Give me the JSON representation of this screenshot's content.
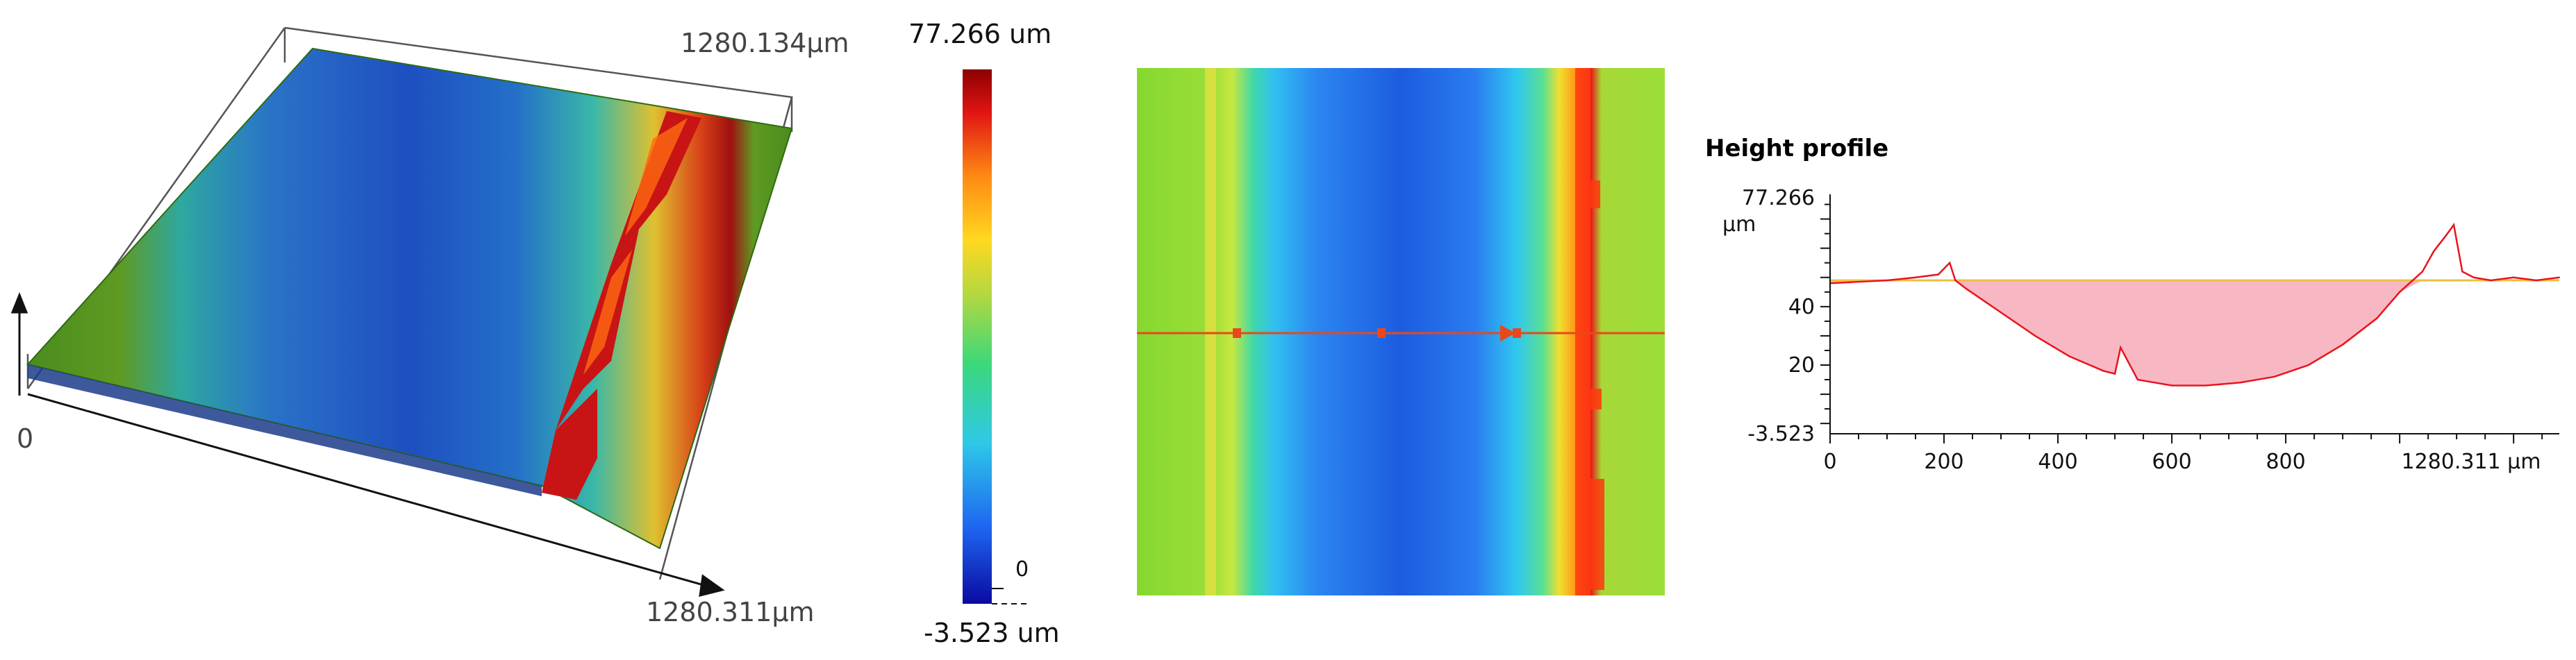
{
  "surface3d": {
    "y_extent_label": "1280.134µm",
    "x_extent_label": "1280.311µm",
    "origin_label": "0"
  },
  "colorbar": {
    "max_label": "77.266 um",
    "min_label": "-3.523 um",
    "zero_label": "0",
    "colors": [
      "#0a0aa0",
      "#1e64f0",
      "#2ec8e8",
      "#3cd87a",
      "#b4d840",
      "#ffd820",
      "#ff8a14",
      "#e01414",
      "#8c0000"
    ]
  },
  "heatmap": {
    "marker_color": "#e8481c"
  },
  "chart_data": {
    "type": "line",
    "title": "Height profile",
    "ylabel": "µm",
    "x_tick_labels": [
      "0",
      "200",
      "400",
      "600",
      "800",
      "1280.311 µm"
    ],
    "y_tick_labels": [
      "77.266",
      "40",
      "20",
      "-3.523"
    ],
    "x": [
      0,
      50,
      100,
      150,
      190,
      210,
      220,
      240,
      300,
      360,
      420,
      480,
      500,
      510,
      540,
      600,
      660,
      720,
      780,
      840,
      900,
      960,
      1000,
      1040,
      1060,
      1080,
      1095,
      1110,
      1130,
      1160,
      1200,
      1240,
      1280
    ],
    "values": [
      48,
      48.5,
      49,
      50,
      51,
      55,
      49,
      46,
      38,
      30,
      23,
      18,
      17,
      26,
      15,
      13,
      13,
      14,
      16,
      20,
      27,
      36,
      45,
      52,
      59,
      64,
      68,
      52,
      50,
      49,
      50,
      49,
      50
    ],
    "reference_level": 49,
    "xlim": [
      0,
      1280.311
    ],
    "ylim": [
      -3.523,
      77.266
    ],
    "colors": {
      "line": "#e8141e",
      "fill": "#f7b8c4",
      "reference": "#f0c040"
    }
  }
}
